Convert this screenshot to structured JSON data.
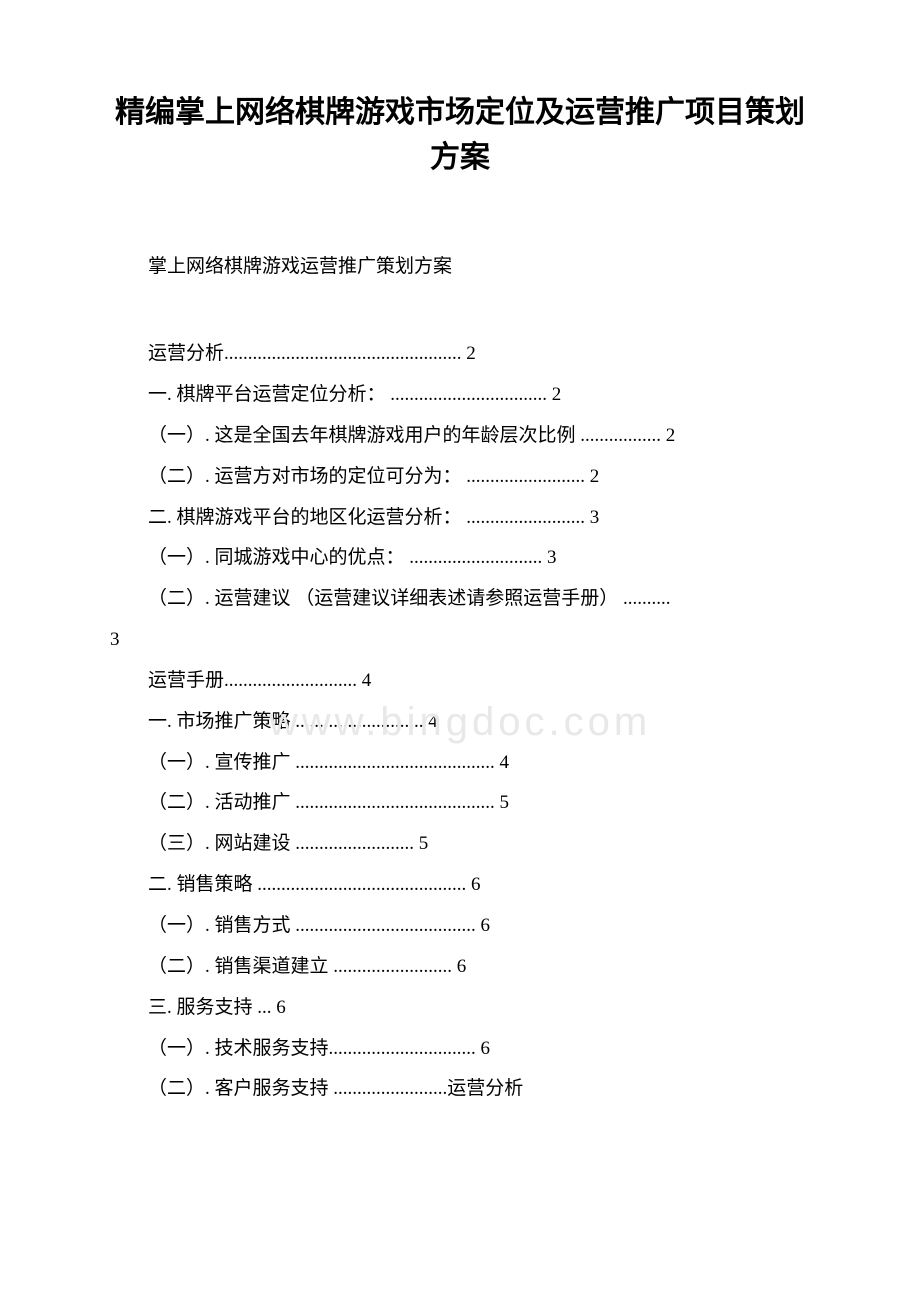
{
  "title": "精编掌上网络棋牌游戏市场定位及运营推广项目策划方案",
  "subtitle": "掌上网络棋牌游戏运营推广策划方案",
  "watermark": "www.bingdoc.com",
  "toc": [
    "运营分析.................................................. 2",
    "一. 棋牌平台运营定位分析： ................................. 2",
    "（一）. 这是全国去年棋牌游戏用户的年龄层次比例 ................. 2",
    "（二）. 运营方对市场的定位可分为： ......................... 2",
    "二. 棋牌游戏平台的地区化运营分析： ......................... 3",
    "（一）. 同城游戏中心的优点： ............................ 3",
    "（二）. 运营建议 （运营建议详细表述请参照运营手册） ..........",
    "3",
    "运营手册............................ 4",
    "一. 市场推广策略 ........................... 4",
    "（一）. 宣传推广 .......................................... 4",
    "（二）. 活动推广 .......................................... 5",
    "（三）. 网站建设 ......................... 5",
    "二. 销售策略 ............................................ 6",
    "（一）. 销售方式 ...................................... 6",
    "（二）. 销售渠道建立 ......................... 6",
    "三. 服务支持 ... 6",
    "（一）. 技术服务支持............................... 6",
    "（二）. 客户服务支持 ........................运营分析"
  ],
  "colors": {
    "text": "#000000",
    "background": "#ffffff",
    "watermark": "#e8e8e8"
  },
  "typography": {
    "title_fontsize": 30,
    "body_fontsize": 19,
    "font_family": "SimSun"
  }
}
